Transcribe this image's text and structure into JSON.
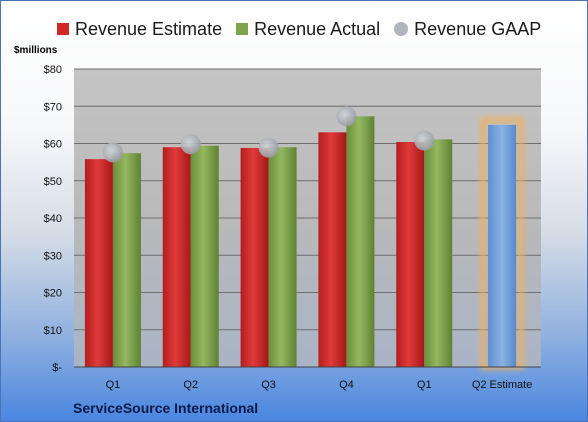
{
  "chart_data": {
    "type": "bar",
    "ylabel": "$millions",
    "footer": "ServiceSource International",
    "categories": [
      "Q1",
      "Q2",
      "Q3",
      "Q4",
      "Q1",
      "Q2 Estimate"
    ],
    "series": [
      {
        "name": "Revenue Estimate",
        "color": "#d02828",
        "values": [
          55.8,
          59.0,
          58.8,
          63.0,
          60.4,
          null
        ]
      },
      {
        "name": "Revenue Actual",
        "color": "#7ea34a",
        "values": [
          57.4,
          59.4,
          59.0,
          67.3,
          61.1,
          null
        ]
      },
      {
        "name": "Revenue GAAP",
        "color": "#b0b4bd",
        "values": [
          57.6,
          59.8,
          58.9,
          67.3,
          60.8,
          null
        ]
      }
    ],
    "estimate": {
      "category": "Q2 Estimate",
      "value": 65.0,
      "color": "#6f9fdc",
      "glow": "#f0b060"
    },
    "y_ticks": [
      "$-",
      "$10",
      "$20",
      "$30",
      "$40",
      "$50",
      "$60",
      "$70",
      "$80"
    ],
    "ylim": [
      0,
      80
    ],
    "grid": true,
    "legend_position": "top"
  }
}
